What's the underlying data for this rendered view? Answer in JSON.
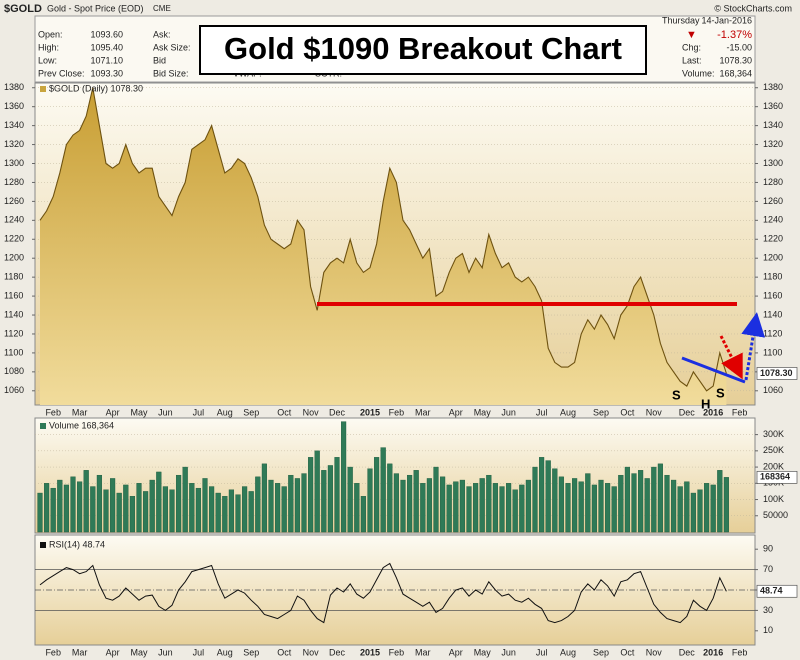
{
  "header": {
    "symbol": "$GOLD",
    "description": "Gold - Spot Price (EOD)",
    "exchange": "CME",
    "credit": "© StockCharts.com",
    "title": "Gold $1090 Breakout Chart",
    "quote": [
      [
        "Open:",
        "1093.60"
      ],
      [
        "High:",
        "1095.40"
      ],
      [
        "Low:",
        "1071.10"
      ],
      [
        "Prev Close:",
        "1093.30"
      ]
    ],
    "order_fields": [
      "Ask:",
      "Ask Size:",
      "Bid",
      "Bid Size:"
    ],
    "extra_fields": [
      "VWAP:",
      "SCTR:"
    ],
    "day": "Thursday",
    "date": "14-Jan-2016",
    "change_pct": "-1.37%",
    "summary": [
      [
        "Chg:",
        "-15.00"
      ],
      [
        "Last:",
        "1078.30"
      ],
      [
        "Volume:",
        "168,364"
      ]
    ]
  },
  "annotations": [
    "S",
    "H",
    "S"
  ],
  "chart_data": [
    {
      "type": "area",
      "categories": [
        null,
        null,
        "Feb",
        null,
        null,
        null,
        "Mar",
        null,
        null,
        null,
        null,
        "Apr",
        null,
        null,
        null,
        "May",
        null,
        null,
        null,
        "Jun",
        null,
        null,
        null,
        null,
        "Jul",
        null,
        null,
        null,
        "Aug",
        null,
        null,
        null,
        "Sep",
        null,
        null,
        null,
        null,
        "Oct",
        null,
        null,
        null,
        "Nov",
        null,
        null,
        null,
        "Dec",
        null,
        null,
        null,
        null,
        "2015",
        null,
        null,
        null,
        "Feb",
        null,
        null,
        null,
        "Mar",
        null,
        null,
        null,
        null,
        "Apr",
        null,
        null,
        null,
        "May",
        null,
        null,
        null,
        "Jun",
        null,
        null,
        null,
        null,
        "Jul",
        null,
        null,
        null,
        "Aug",
        null,
        null,
        null,
        null,
        "Sep",
        null,
        null,
        null,
        "Oct",
        null,
        null,
        null,
        "Nov",
        null,
        null,
        null,
        null,
        "Dec",
        null,
        null,
        null,
        "2016",
        null,
        null,
        null,
        "Feb"
      ],
      "series": [
        {
          "name": "$GOLD (Daily) 1078.30",
          "color": "#c9a53e",
          "line_color": "#6e5210",
          "values": [
            1240,
            1250,
            1265,
            1290,
            1320,
            1330,
            1335,
            1350,
            1380,
            1340,
            1300,
            1295,
            1300,
            1320,
            1300,
            1290,
            1295,
            1295,
            1265,
            1255,
            1245,
            1265,
            1280,
            1315,
            1320,
            1325,
            1340,
            1315,
            1290,
            1295,
            1305,
            1300,
            1285,
            1265,
            1235,
            1220,
            1215,
            1210,
            1215,
            1240,
            1230,
            1170,
            1145,
            1185,
            1195,
            1200,
            1195,
            1220,
            1195,
            1185,
            1190,
            1215,
            1260,
            1295,
            1280,
            1240,
            1230,
            1215,
            1200,
            1210,
            1160,
            1165,
            1185,
            1200,
            1205,
            1185,
            1200,
            1190,
            1225,
            1205,
            1190,
            1195,
            1180,
            1175,
            1180,
            1170,
            1155,
            1105,
            1090,
            1085,
            1085,
            1090,
            1120,
            1135,
            1125,
            1140,
            1130,
            1115,
            1140,
            1150,
            1170,
            1180,
            1160,
            1140,
            1110,
            1090,
            1080,
            1070,
            1065,
            1080,
            1070,
            1060,
            1065,
            1100,
            1078.3,
            null,
            null
          ]
        }
      ],
      "ylim": [
        1045,
        1385
      ],
      "yticks": [
        1060,
        1080,
        1100,
        1120,
        1140,
        1160,
        1180,
        1200,
        1220,
        1240,
        1260,
        1280,
        1300,
        1320,
        1340,
        1360,
        1380
      ],
      "tick_sides": [
        "left",
        "right"
      ],
      "grid": true
    },
    {
      "type": "bar",
      "series": [
        {
          "name": "Volume 168,364",
          "color": "#2f7a57",
          "values": [
            120000,
            150000,
            135000,
            160000,
            145000,
            170000,
            155000,
            190000,
            140000,
            175000,
            130000,
            165000,
            120000,
            145000,
            110000,
            150000,
            125000,
            160000,
            185000,
            140000,
            130000,
            175000,
            200000,
            150000,
            135000,
            165000,
            140000,
            120000,
            110000,
            130000,
            115000,
            140000,
            125000,
            170000,
            210000,
            160000,
            150000,
            140000,
            175000,
            165000,
            180000,
            230000,
            250000,
            190000,
            205000,
            230000,
            340000,
            200000,
            150000,
            110000,
            195000,
            230000,
            260000,
            210000,
            180000,
            160000,
            175000,
            190000,
            150000,
            165000,
            200000,
            170000,
            145000,
            155000,
            160000,
            140000,
            150000,
            165000,
            175000,
            150000,
            140000,
            150000,
            130000,
            145000,
            160000,
            200000,
            230000,
            220000,
            195000,
            170000,
            150000,
            165000,
            155000,
            180000,
            145000,
            160000,
            150000,
            140000,
            175000,
            200000,
            180000,
            190000,
            165000,
            200000,
            210000,
            175000,
            160000,
            140000,
            155000,
            120000,
            130000,
            150000,
            145000,
            190000,
            168364,
            null,
            null
          ]
        }
      ],
      "ylim": [
        0,
        345000
      ],
      "yticks": [
        50000,
        {
          "value": 100000,
          "label": "100K"
        },
        {
          "value": 150000,
          "label": "150K"
        },
        {
          "value": 200000,
          "label": "200K"
        },
        {
          "value": 250000,
          "label": "250K"
        },
        {
          "value": 300000,
          "label": "300K"
        }
      ],
      "tick_sides": [
        "right"
      ],
      "grid": true
    },
    {
      "type": "line",
      "categories": [
        null,
        null,
        "Feb",
        null,
        null,
        null,
        "Mar",
        null,
        null,
        null,
        null,
        "Apr",
        null,
        null,
        null,
        "May",
        null,
        null,
        null,
        "Jun",
        null,
        null,
        null,
        null,
        "Jul",
        null,
        null,
        null,
        "Aug",
        null,
        null,
        null,
        "Sep",
        null,
        null,
        null,
        null,
        "Oct",
        null,
        null,
        null,
        "Nov",
        null,
        null,
        null,
        "Dec",
        null,
        null,
        null,
        null,
        "2015",
        null,
        null,
        null,
        "Feb",
        null,
        null,
        null,
        "Mar",
        null,
        null,
        null,
        null,
        "Apr",
        null,
        null,
        null,
        "May",
        null,
        null,
        null,
        "Jun",
        null,
        null,
        null,
        null,
        "Jul",
        null,
        null,
        null,
        "Aug",
        null,
        null,
        null,
        null,
        "Sep",
        null,
        null,
        null,
        "Oct",
        null,
        null,
        null,
        "Nov",
        null,
        null,
        null,
        null,
        "Dec",
        null,
        null,
        null,
        "2016",
        null,
        null,
        null,
        "Feb"
      ],
      "series": [
        {
          "name": "RSI(14) 48.74",
          "color": "#111111",
          "values": [
            55,
            60,
            64,
            68,
            72,
            70,
            66,
            68,
            74,
            55,
            42,
            40,
            44,
            52,
            46,
            40,
            44,
            45,
            34,
            30,
            35,
            50,
            58,
            68,
            70,
            72,
            74,
            56,
            42,
            46,
            50,
            47,
            40,
            34,
            26,
            24,
            22,
            26,
            30,
            44,
            40,
            30,
            22,
            18,
            45,
            52,
            48,
            56,
            46,
            42,
            48,
            60,
            72,
            76,
            62,
            46,
            42,
            38,
            34,
            38,
            28,
            32,
            42,
            50,
            52,
            44,
            50,
            46,
            58,
            50,
            44,
            46,
            40,
            38,
            42,
            36,
            32,
            20,
            18,
            20,
            24,
            30,
            48,
            56,
            50,
            60,
            54,
            44,
            58,
            60,
            66,
            68,
            52,
            36,
            28,
            22,
            20,
            18,
            24,
            40,
            34,
            30,
            42,
            62,
            48.74,
            null,
            null
          ]
        }
      ],
      "ylim": [
        0,
        100
      ],
      "yticks": [
        10,
        30,
        50,
        70,
        90
      ],
      "reference_lines": [
        30,
        50,
        70
      ],
      "tick_sides": [
        "right"
      ],
      "grid": false
    }
  ]
}
